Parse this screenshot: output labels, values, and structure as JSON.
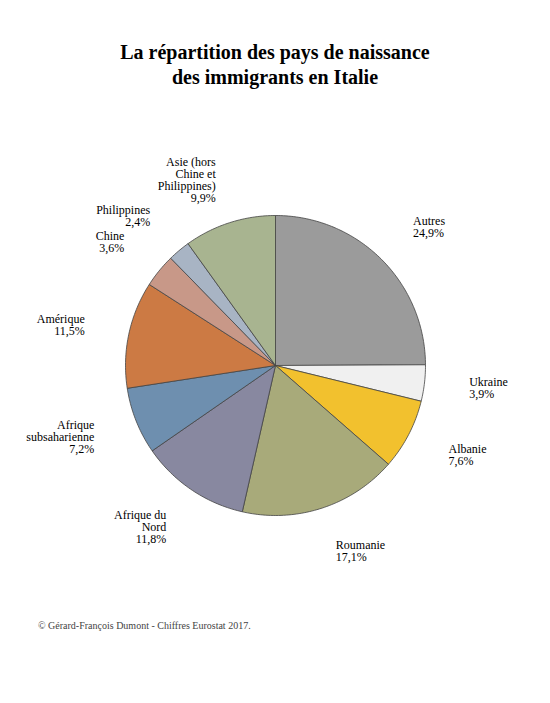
{
  "chart_data": {
    "type": "pie",
    "title": "La répartition des pays de naissance\ndes immigrants en Italie",
    "caption": "© Gérard-François Dumont - Chiffres Eurostat 2017.",
    "categories": [
      "Autres",
      "Ukraine",
      "Albanie",
      "Roumanie",
      "Afrique du\nNord",
      "Afrique\nsubsaharienne",
      "Amérique",
      "Chine",
      "Philippines",
      "Asie (hors\nChine et\nPhilippines)"
    ],
    "values": [
      24.9,
      3.9,
      7.6,
      17.1,
      11.8,
      7.2,
      11.5,
      3.6,
      2.4,
      9.9
    ],
    "value_labels": [
      "24,9%",
      "3,9%",
      "7,6%",
      "17,1%",
      "11,8%",
      "7,2%",
      "11,5%",
      "3,6%",
      "2,4%",
      "9,9%"
    ],
    "colors": [
      "#9B9B9B",
      "#F0F0F0",
      "#F2C12E",
      "#A8AA7A",
      "#8888A0",
      "#6E8FAF",
      "#CC7A44",
      "#C89888",
      "#A8B4C4",
      "#A8B490"
    ],
    "data_labels": true
  }
}
